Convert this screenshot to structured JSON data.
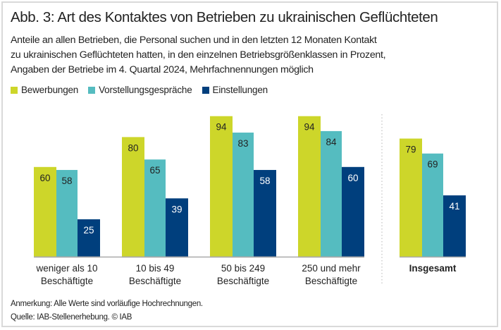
{
  "chart_data": {
    "type": "bar",
    "title": "Abb. 3: Art des Kontaktes von Betrieben zu ukrainischen Geflüchteten",
    "subtitle": [
      "Anteile an allen Betrieben, die Personal suchen und in den letzten 12 Monaten Kontakt",
      "zu ukrainischen Geflüchteten hatten, in den einzelnen Betriebsgrößenklassen in Prozent,",
      "Angaben der Betriebe im 4. Quartal 2024, Mehrfachnennungen möglich"
    ],
    "categories": [
      [
        "weniger als 10",
        "Beschäftigte"
      ],
      [
        "10 bis 49",
        "Beschäftigte"
      ],
      [
        "50 bis 249",
        "Beschäftigte"
      ],
      [
        "250 und mehr",
        "Beschäftigte"
      ],
      [
        "Insgesamt"
      ]
    ],
    "category_bold": [
      false,
      false,
      false,
      false,
      true
    ],
    "series": [
      {
        "name": "Bewerbungen",
        "color": "#cdd62a",
        "label_color": "#222222",
        "values": [
          60,
          80,
          94,
          94,
          79
        ]
      },
      {
        "name": "Vorstellungsgespräche",
        "color": "#55bcc0",
        "label_color": "#222222",
        "values": [
          58,
          65,
          83,
          84,
          69
        ]
      },
      {
        "name": "Einstellungen",
        "color": "#003f7d",
        "label_color": "#ffffff",
        "values": [
          25,
          39,
          58,
          60,
          41
        ]
      }
    ],
    "xlabel": "",
    "ylabel": "",
    "ylim": [
      0,
      100
    ],
    "grid": false,
    "legend_position": "top-left",
    "separator_before_last": true
  },
  "notes": {
    "remark": "Anmerkung: Alle Werte sind vorläufige Hochrechnungen.",
    "source": "Quelle: IAB-Stellenerhebung. © IAB"
  }
}
